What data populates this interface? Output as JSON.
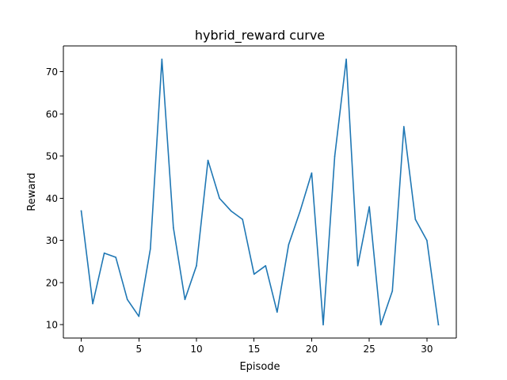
{
  "chart_data": {
    "type": "line",
    "title": "hybrid_reward curve",
    "xlabel": "Episode",
    "ylabel": "Reward",
    "xlim": [
      -1.55,
      32.55
    ],
    "ylim": [
      6.85,
      76.15
    ],
    "x_ticks": [
      0,
      5,
      10,
      15,
      20,
      25,
      30
    ],
    "y_ticks": [
      10,
      20,
      30,
      40,
      50,
      60,
      70
    ],
    "grid": false,
    "legend": "none",
    "series": [
      {
        "name": "hybrid_reward",
        "color": "#1f77b4",
        "x": [
          0,
          1,
          2,
          3,
          4,
          5,
          6,
          7,
          8,
          9,
          10,
          11,
          12,
          13,
          14,
          15,
          16,
          17,
          18,
          19,
          20,
          21,
          22,
          23,
          24,
          25,
          26,
          27,
          28,
          29,
          30,
          31
        ],
        "values": [
          37,
          15,
          27,
          26,
          16,
          12,
          28,
          73,
          33,
          16,
          24,
          49,
          40,
          37,
          35,
          22,
          24,
          13,
          29,
          37,
          46,
          10,
          50,
          73,
          24,
          38,
          10,
          18,
          57,
          35,
          30,
          10
        ]
      }
    ]
  }
}
